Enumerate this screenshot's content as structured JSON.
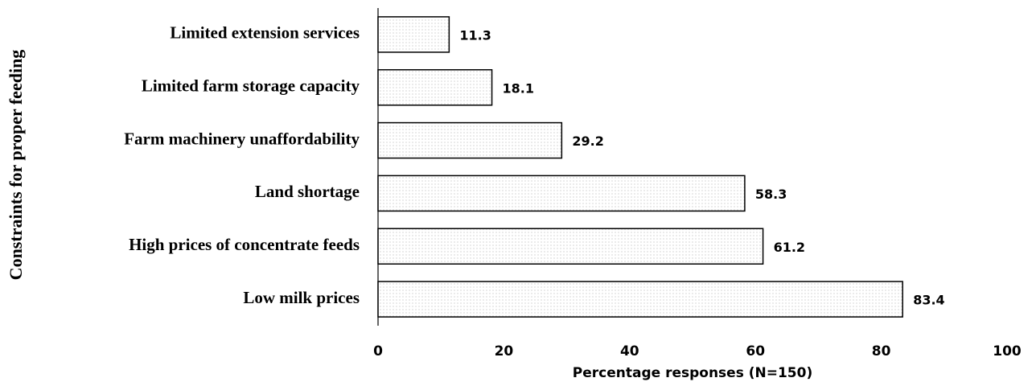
{
  "chart_data": {
    "type": "barh",
    "categories": [
      "Limited extension services",
      "Limited farm storage capacity",
      "Farm machinery unaffordability",
      "Land shortage",
      "High prices of concentrate feeds",
      "Low milk prices"
    ],
    "values": [
      11.3,
      18.1,
      29.2,
      58.3,
      61.2,
      83.4
    ],
    "color": "#bbbbbb",
    "xlim": [
      0,
      100
    ],
    "xticks": [
      0,
      20,
      40,
      60,
      80,
      100
    ],
    "xlabel": "Percentage responses (N=150)",
    "ylabel": "Constraints for proper feeding"
  }
}
